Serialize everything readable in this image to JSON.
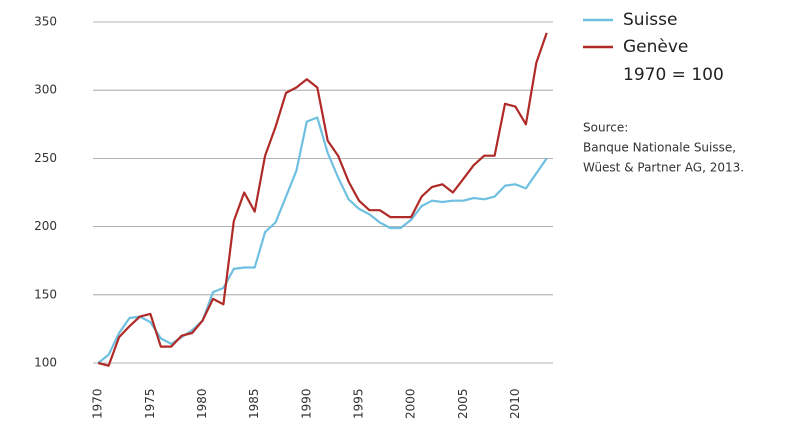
{
  "chart_data": {
    "type": "line",
    "x": [
      1970,
      1971,
      1972,
      1973,
      1974,
      1975,
      1976,
      1977,
      1978,
      1979,
      1980,
      1981,
      1982,
      1983,
      1984,
      1985,
      1986,
      1987,
      1988,
      1989,
      1990,
      1991,
      1992,
      1993,
      1994,
      1995,
      1996,
      1997,
      1998,
      1999,
      2000,
      2001,
      2002,
      2003,
      2004,
      2005,
      2006,
      2007,
      2008,
      2009,
      2010,
      2011,
      2012,
      2013
    ],
    "series": [
      {
        "name": "Suisse",
        "color": "#6fbfe0",
        "values": [
          100,
          106,
          122,
          133,
          134,
          130,
          118,
          114,
          119,
          124,
          131,
          152,
          155,
          169,
          170,
          170,
          196,
          203,
          222,
          241,
          277,
          280,
          254,
          236,
          220,
          213,
          209,
          203,
          199,
          199,
          205,
          215,
          219,
          218,
          219,
          219,
          221,
          220,
          222,
          230,
          231,
          228,
          239,
          250
        ]
      },
      {
        "name": "Genève",
        "color": "#b02a27",
        "values": [
          100,
          98,
          119,
          127,
          134,
          136,
          112,
          112,
          120,
          122,
          131,
          147,
          143,
          204,
          225,
          211,
          252,
          273,
          298,
          302,
          308,
          302,
          263,
          252,
          233,
          219,
          212,
          212,
          207,
          207,
          207,
          222,
          229,
          231,
          225,
          235,
          245,
          252,
          252,
          290,
          288,
          275,
          320,
          342
        ]
      }
    ],
    "note": "1970 = 100",
    "source": [
      "Source:",
      "Banque Nationale Suisse,",
      "Wüest & Partner AG, 2013."
    ],
    "xlim": [
      1969.5,
      2013.6
    ],
    "xticks": [
      1970,
      1975,
      1980,
      1985,
      1990,
      1995,
      2000,
      2005,
      2010
    ],
    "ylim": [
      100,
      350
    ],
    "yticks": [
      100,
      150,
      200,
      250,
      300,
      350
    ],
    "grid": true
  }
}
